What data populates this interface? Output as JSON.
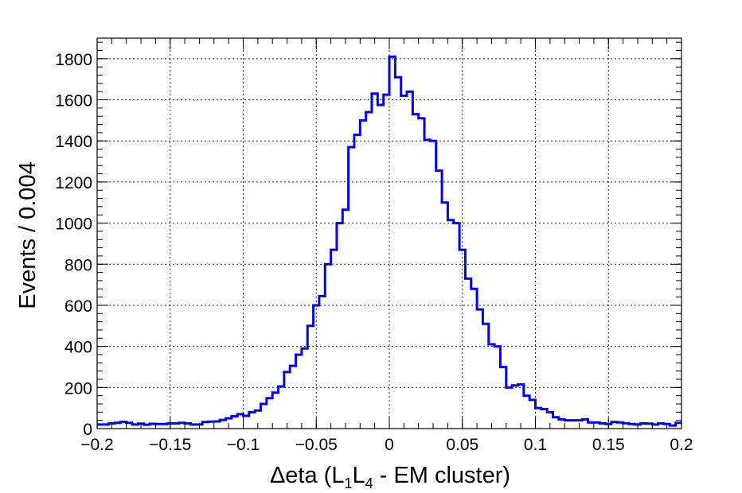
{
  "chart_data": {
    "type": "histogram",
    "title": "",
    "xlabel": {
      "pre": "Δeta (L",
      "sub1": "1",
      "mid": "L",
      "sub2": "4",
      "post": " - EM cluster)"
    },
    "ylabel": "Events / 0.004",
    "xlim": [
      -0.2,
      0.2
    ],
    "ylim": [
      0,
      1900
    ],
    "bin_width": 0.004,
    "grid": true,
    "line_color": "#0000ee",
    "x_ticks": [
      {
        "value": -0.2,
        "label": "−0.2"
      },
      {
        "value": -0.15,
        "label": "−0.15"
      },
      {
        "value": -0.1,
        "label": "−0.1"
      },
      {
        "value": -0.05,
        "label": "−0.05"
      },
      {
        "value": 0,
        "label": "0"
      },
      {
        "value": 0.05,
        "label": "0.05"
      },
      {
        "value": 0.1,
        "label": "0.1"
      },
      {
        "value": 0.15,
        "label": "0.15"
      },
      {
        "value": 0.2,
        "label": "0.2"
      }
    ],
    "y_ticks": [
      {
        "value": 0,
        "label": "0"
      },
      {
        "value": 200,
        "label": "200"
      },
      {
        "value": 400,
        "label": "400"
      },
      {
        "value": 600,
        "label": "600"
      },
      {
        "value": 800,
        "label": "800"
      },
      {
        "value": 1000,
        "label": "1000"
      },
      {
        "value": 1200,
        "label": "1200"
      },
      {
        "value": 1400,
        "label": "1400"
      },
      {
        "value": 1600,
        "label": "1600"
      },
      {
        "value": 1800,
        "label": "1800"
      }
    ],
    "series": [
      {
        "values": [
          20,
          20,
          25,
          28,
          33,
          28,
          20,
          24,
          19,
          23,
          22,
          22,
          25,
          25,
          28,
          25,
          20,
          20,
          32,
          34,
          35,
          42,
          50,
          60,
          70,
          62,
          80,
          88,
          120,
          148,
          175,
          205,
          275,
          305,
          360,
          390,
          500,
          600,
          645,
          800,
          870,
          1000,
          1065,
          1370,
          1430,
          1500,
          1540,
          1630,
          1575,
          1625,
          1810,
          1710,
          1620,
          1640,
          1530,
          1510,
          1405,
          1400,
          1255,
          1100,
          1015,
          1000,
          870,
          730,
          680,
          580,
          510,
          410,
          400,
          300,
          200,
          210,
          215,
          160,
          140,
          100,
          95,
          80,
          55,
          45,
          40,
          40,
          40,
          45,
          30,
          30,
          25,
          22,
          32,
          30,
          26,
          22,
          20,
          25,
          24,
          20,
          25,
          22,
          15,
          28
        ]
      }
    ]
  }
}
